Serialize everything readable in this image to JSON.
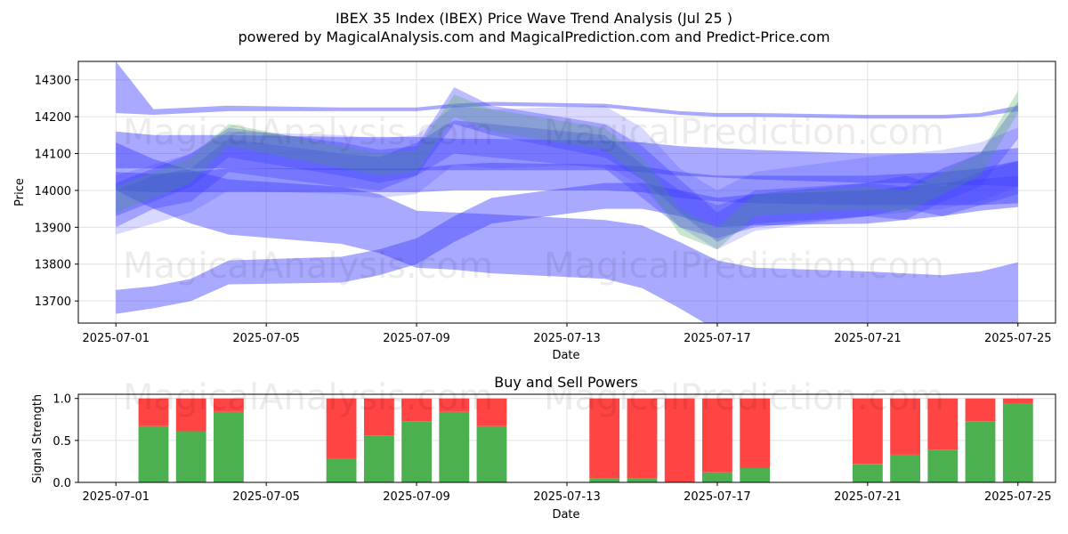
{
  "title": {
    "line1": "IBEX 35 Index (IBEX) Price Wave Trend Analysis (Jul 25 )",
    "line2": "powered by MagicalAnalysis.com and MagicalPrediction.com and Predict-Price.com"
  },
  "watermarks": [
    "MagicalAnalysis.com",
    "MagicalPrediction.com"
  ],
  "colors": {
    "wave_blue": "#4040ff",
    "wave_green": "#4caf50",
    "buy": "#4caf50",
    "sell": "#ff4444",
    "grid": "#e0e0e0"
  },
  "chart_data": [
    {
      "type": "area",
      "title": "",
      "xlabel": "Date",
      "ylabel": "Price",
      "x_ticks": [
        "2025-07-01",
        "2025-07-05",
        "2025-07-09",
        "2025-07-13",
        "2025-07-17",
        "2025-07-21",
        "2025-07-25"
      ],
      "y_ticks": [
        13700,
        13800,
        13900,
        14000,
        14100,
        14200,
        14300
      ],
      "ylim": [
        13640,
        14350
      ],
      "xlim": [
        "2025-06-30",
        "2025-07-26"
      ],
      "grid": true,
      "dates": [
        "2025-07-01",
        "2025-07-02",
        "2025-07-03",
        "2025-07-04",
        "2025-07-07",
        "2025-07-08",
        "2025-07-09",
        "2025-07-10",
        "2025-07-11",
        "2025-07-14",
        "2025-07-15",
        "2025-07-16",
        "2025-07-17",
        "2025-07-18",
        "2025-07-21",
        "2025-07-22",
        "2025-07-23",
        "2025-07-24",
        "2025-07-25"
      ],
      "bands": [
        {
          "name": "",
          "color": "blue",
          "alpha": 0.45,
          "upper": [
            14350,
            14220,
            14225,
            14230,
            14225,
            14225,
            14225,
            14235,
            14240,
            14235,
            14225,
            14215,
            14210,
            14210,
            14205,
            14205,
            14205,
            14210,
            14230
          ],
          "lower": [
            14210,
            14205,
            14210,
            14215,
            14215,
            14215,
            14215,
            14225,
            14230,
            14225,
            14215,
            14205,
            14200,
            14200,
            14195,
            14195,
            14195,
            14200,
            14215
          ]
        },
        {
          "name": "",
          "color": "blue",
          "alpha": 0.45,
          "upper": [
            14160,
            14150,
            14150,
            14150,
            14145,
            14145,
            14145,
            14140,
            14140,
            14135,
            14130,
            14120,
            14115,
            14110,
            14100,
            14100,
            14100,
            14105,
            14115
          ],
          "lower": [
            14060,
            14060,
            14060,
            14060,
            14055,
            14055,
            14055,
            14055,
            14055,
            14055,
            14050,
            14040,
            14035,
            14030,
            14020,
            14020,
            14015,
            14015,
            14010
          ]
        },
        {
          "name": "",
          "color": "blue",
          "alpha": 0.45,
          "upper": [
            14130,
            14085,
            14055,
            14030,
            14010,
            13990,
            13945,
            13940,
            13935,
            13920,
            13905,
            13860,
            13810,
            13790,
            13780,
            13775,
            13770,
            13780,
            13805
          ],
          "lower": [
            14000,
            13950,
            13910,
            13880,
            13855,
            13830,
            13790,
            13785,
            13775,
            13760,
            13735,
            13680,
            13620,
            13600,
            13590,
            13585,
            13580,
            13590,
            13600
          ]
        },
        {
          "name": "",
          "color": "blue",
          "alpha": 0.45,
          "upper": [
            14050,
            14045,
            14050,
            14060,
            14060,
            14060,
            14060,
            14070,
            14075,
            14070,
            14065,
            14050,
            14040,
            14040,
            14040,
            14045,
            14050,
            14060,
            14080
          ],
          "lower": [
            14000,
            13995,
            13995,
            13995,
            13995,
            13995,
            13995,
            14000,
            14000,
            14000,
            13995,
            13980,
            13970,
            13965,
            13960,
            13960,
            13960,
            13960,
            13965
          ]
        },
        {
          "name": "",
          "color": "blue",
          "alpha": 0.45,
          "upper": [
            13730,
            13740,
            13760,
            13810,
            13820,
            13840,
            13870,
            13930,
            13980,
            14020,
            14020,
            14000,
            13980,
            13990,
            14000,
            14010,
            14020,
            14030,
            14040
          ],
          "lower": [
            13665,
            13680,
            13700,
            13745,
            13750,
            13770,
            13800,
            13860,
            13910,
            13950,
            13950,
            13930,
            13900,
            13905,
            13910,
            13920,
            13930,
            13945,
            13955
          ]
        },
        {
          "name": "",
          "color": "blue",
          "alpha": 0.35,
          "upper": [
            14020,
            14060,
            14100,
            14170,
            14130,
            14110,
            14120,
            14280,
            14230,
            14180,
            14120,
            14030,
            13940,
            14000,
            14020,
            14010,
            14060,
            14100,
            14240
          ],
          "lower": [
            13930,
            13970,
            14010,
            14090,
            14040,
            14020,
            14040,
            14180,
            14150,
            14090,
            14030,
            13940,
            13860,
            13910,
            13930,
            13920,
            13970,
            14010,
            14140
          ]
        },
        {
          "name": "",
          "color": "blue",
          "alpha": 0.35,
          "upper": [
            14000,
            14040,
            14060,
            14140,
            14100,
            14090,
            14130,
            14190,
            14180,
            14150,
            14070,
            14000,
            13960,
            13990,
            14020,
            14040,
            14010,
            14050,
            14080
          ],
          "lower": [
            13900,
            13950,
            13970,
            14050,
            14010,
            14000,
            14040,
            14100,
            14090,
            14060,
            13980,
            13900,
            13870,
            13900,
            13930,
            13950,
            13930,
            13960,
            13990
          ]
        },
        {
          "name": "",
          "color": "green",
          "alpha": 0.3,
          "upper": [
            14010,
            14050,
            14090,
            14180,
            14120,
            14100,
            14110,
            14260,
            14220,
            14170,
            14090,
            13950,
            13900,
            13990,
            14010,
            14000,
            14050,
            14100,
            14270
          ],
          "lower": [
            13940,
            13980,
            14020,
            14120,
            14060,
            14040,
            14050,
            14200,
            14160,
            14110,
            14030,
            13880,
            13840,
            13930,
            13950,
            13940,
            13990,
            14040,
            14210
          ]
        },
        {
          "name": "",
          "color": "blue",
          "alpha": 0.2,
          "upper": [
            14040,
            14070,
            14100,
            14160,
            14150,
            14140,
            14150,
            14230,
            14220,
            14230,
            14170,
            14060,
            14000,
            14050,
            14090,
            14100,
            14110,
            14130,
            14170
          ],
          "lower": [
            13880,
            13910,
            13940,
            14000,
            13990,
            13980,
            13990,
            14070,
            14060,
            14070,
            14010,
            13900,
            13840,
            13890,
            13930,
            13940,
            13950,
            13970,
            14010
          ]
        }
      ]
    },
    {
      "type": "bar",
      "title": "Buy and Sell Powers",
      "xlabel": "Date",
      "ylabel": "Signal Strength",
      "x_ticks": [
        "2025-07-01",
        "2025-07-05",
        "2025-07-09",
        "2025-07-13",
        "2025-07-17",
        "2025-07-21",
        "2025-07-25"
      ],
      "y_ticks": [
        "0.0",
        "0.5",
        "1.0"
      ],
      "ylim": [
        0,
        1.05
      ],
      "xlim": [
        "2025-06-30",
        "2025-07-26"
      ],
      "categories": [
        "2025-07-02",
        "2025-07-03",
        "2025-07-04",
        "2025-07-07",
        "2025-07-08",
        "2025-07-09",
        "2025-07-10",
        "2025-07-11",
        "2025-07-14",
        "2025-07-15",
        "2025-07-16",
        "2025-07-17",
        "2025-07-18",
        "2025-07-21",
        "2025-07-22",
        "2025-07-23",
        "2025-07-24",
        "2025-07-25"
      ],
      "series": [
        {
          "name": "",
          "color": "buy",
          "values": [
            0.67,
            0.61,
            0.84,
            0.28,
            0.56,
            0.73,
            0.84,
            0.67,
            0.05,
            0.05,
            0.0,
            0.12,
            0.17,
            0.22,
            0.33,
            0.39,
            0.73,
            0.94
          ]
        },
        {
          "name": "",
          "color": "sell",
          "values": [
            0.33,
            0.39,
            0.16,
            0.72,
            0.44,
            0.27,
            0.16,
            0.33,
            0.95,
            0.95,
            1.0,
            0.88,
            0.83,
            0.78,
            0.67,
            0.61,
            0.27,
            0.06
          ]
        }
      ]
    }
  ]
}
